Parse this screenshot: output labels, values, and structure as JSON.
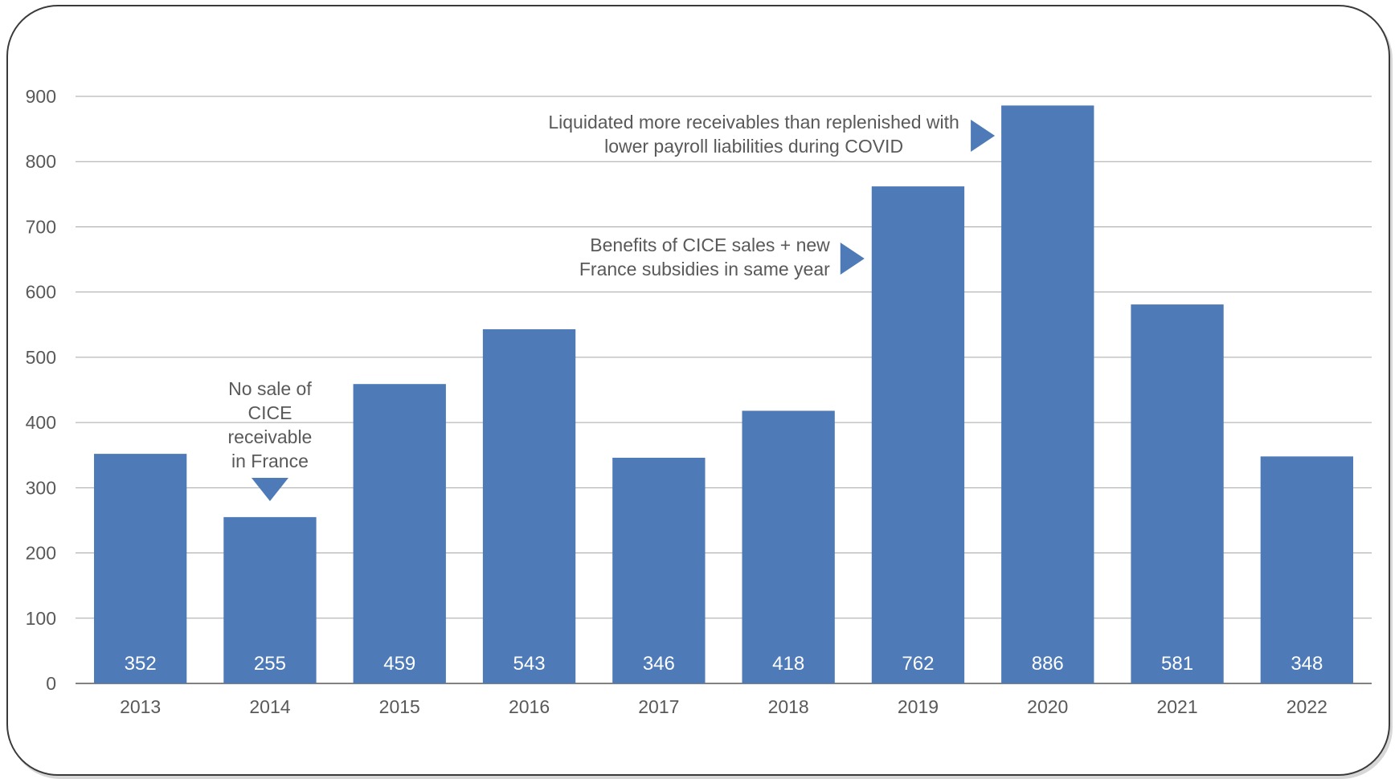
{
  "chart_data": {
    "type": "bar",
    "categories": [
      "2013",
      "2014",
      "2015",
      "2016",
      "2017",
      "2018",
      "2019",
      "2020",
      "2021",
      "2022"
    ],
    "values": [
      352,
      255,
      459,
      543,
      346,
      418,
      762,
      886,
      581,
      348
    ],
    "data_labels": [
      "352",
      "255",
      "459",
      "543",
      "346",
      "418",
      "762",
      "886",
      "581",
      "348"
    ],
    "y_ticks": [
      "0",
      "100",
      "200",
      "300",
      "400",
      "500",
      "600",
      "700",
      "800",
      "900"
    ],
    "ylim": [
      0,
      900
    ],
    "title": "",
    "xlabel": "",
    "ylabel": "",
    "grid": true,
    "bar_color": "#4e7bb8",
    "annotations": [
      {
        "target": "2014",
        "lines": [
          "No sale of",
          "CICE",
          "receivable",
          "in France"
        ]
      },
      {
        "target": "2019",
        "lines": [
          "Benefits of CICE sales + new",
          "France subsidies in same year"
        ]
      },
      {
        "target": "2020",
        "lines": [
          "Liquidated more receivables than replenished with",
          "lower payroll liabilities during COVID"
        ]
      }
    ]
  }
}
